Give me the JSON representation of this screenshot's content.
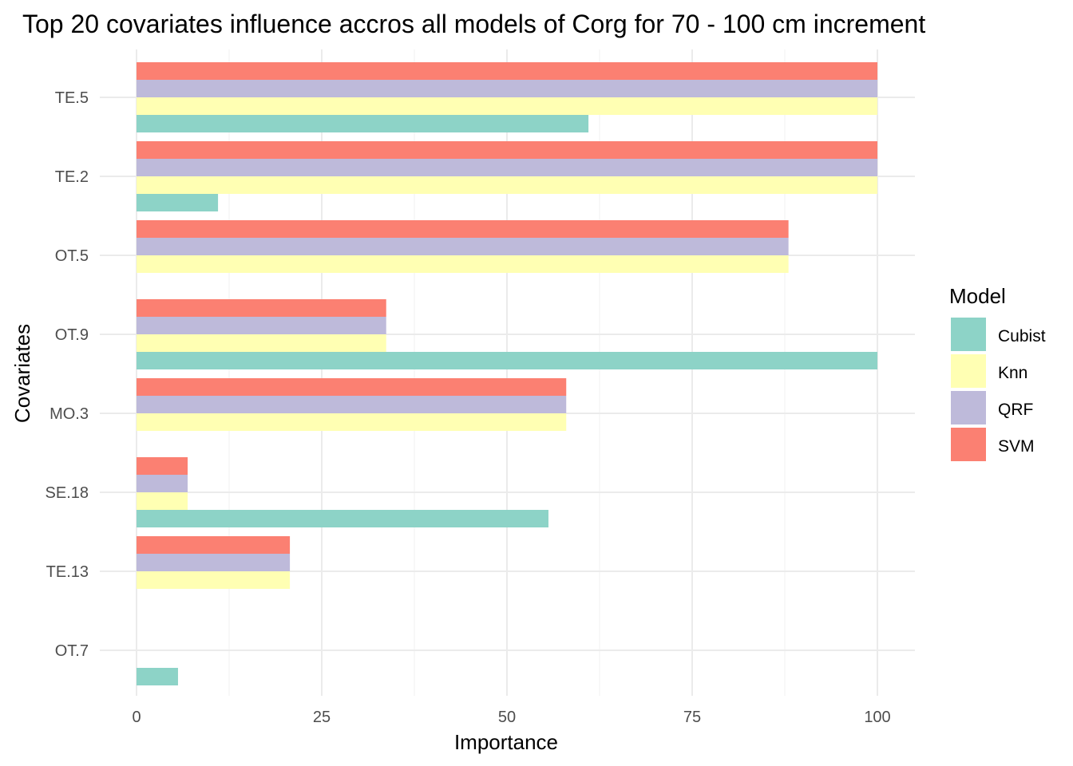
{
  "chart_data": {
    "type": "bar",
    "orientation": "horizontal",
    "title": "Top 20 covariates influence accros all models of Corg for 70 - 100 cm increment",
    "xlabel": "Importance",
    "ylabel": "Covariates",
    "xlim": [
      0,
      100
    ],
    "x_ticks": [
      "0",
      "25",
      "50",
      "75",
      "100"
    ],
    "grid": true,
    "legend": {
      "title": "Model",
      "position": "right"
    },
    "categories": [
      "TE.5",
      "TE.2",
      "OT.5",
      "OT.9",
      "MO.3",
      "SE.18",
      "TE.13",
      "OT.7"
    ],
    "series": [
      {
        "name": "Cubist",
        "color": "#8DD3C7",
        "values": [
          61,
          11,
          0,
          100,
          0,
          55.6,
          0,
          5.6
        ]
      },
      {
        "name": "Knn",
        "color": "#FFFFB3",
        "values": [
          100,
          100,
          88,
          33.7,
          58,
          6.9,
          20.7,
          0
        ]
      },
      {
        "name": "QRF",
        "color": "#BEBADA",
        "values": [
          100,
          100,
          88,
          33.7,
          58,
          6.9,
          20.7,
          0
        ]
      },
      {
        "name": "SVM",
        "color": "#FB8072",
        "values": [
          100,
          100,
          88,
          33.7,
          58,
          6.9,
          20.7,
          0
        ]
      }
    ]
  }
}
